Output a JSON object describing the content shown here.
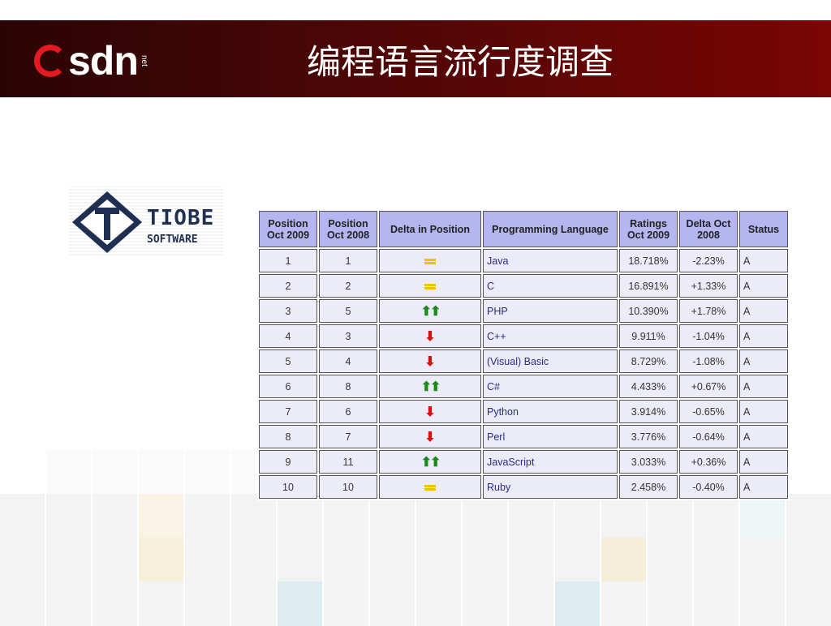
{
  "header": {
    "logo_text": "sdn",
    "logo_suffix": "net",
    "title": "编程语言流行度调查"
  },
  "tiobe_logo": {
    "line1": "TIOBE",
    "line2": "SOFTWARE"
  },
  "table": {
    "headers": [
      "Position Oct 2009",
      "Position Oct 2008",
      "Delta in Position",
      "Programming Language",
      "Ratings Oct 2009",
      "Delta Oct 2008",
      "Status"
    ],
    "rows": [
      {
        "pos09": "1",
        "pos08": "1",
        "delta": "same",
        "lang": "Java",
        "rating": "18.718%",
        "change": "-2.23%",
        "status": "A"
      },
      {
        "pos09": "2",
        "pos08": "2",
        "delta": "same",
        "lang": "C",
        "rating": "16.891%",
        "change": "+1.33%",
        "status": "A"
      },
      {
        "pos09": "3",
        "pos08": "5",
        "delta": "up",
        "lang": "PHP",
        "rating": "10.390%",
        "change": "+1.78%",
        "status": "A"
      },
      {
        "pos09": "4",
        "pos08": "3",
        "delta": "down",
        "lang": "C++",
        "rating": "9.911%",
        "change": "-1.04%",
        "status": "A"
      },
      {
        "pos09": "5",
        "pos08": "4",
        "delta": "down",
        "lang": "(Visual) Basic",
        "rating": "8.729%",
        "change": "-1.08%",
        "status": "A"
      },
      {
        "pos09": "6",
        "pos08": "8",
        "delta": "up",
        "lang": "C#",
        "rating": "4.433%",
        "change": "+0.67%",
        "status": "A"
      },
      {
        "pos09": "7",
        "pos08": "6",
        "delta": "down",
        "lang": "Python",
        "rating": "3.914%",
        "change": "-0.65%",
        "status": "A"
      },
      {
        "pos09": "8",
        "pos08": "7",
        "delta": "down",
        "lang": "Perl",
        "rating": "3.776%",
        "change": "-0.64%",
        "status": "A"
      },
      {
        "pos09": "9",
        "pos08": "11",
        "delta": "up",
        "lang": "JavaScript",
        "rating": "3.033%",
        "change": "+0.36%",
        "status": "A"
      },
      {
        "pos09": "10",
        "pos08": "10",
        "delta": "same",
        "lang": "Ruby",
        "rating": "2.458%",
        "change": "-0.40%",
        "status": "A"
      }
    ]
  },
  "colors": {
    "banner": "#5a0505",
    "header_bg": "#b5b5f0",
    "cell_bg": "#ececf8",
    "up": "#1a8a1a",
    "down": "#d41010",
    "same": "#f2c200"
  }
}
